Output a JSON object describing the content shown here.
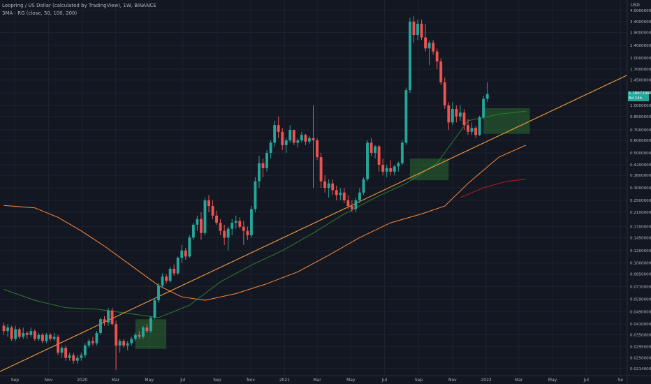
{
  "header": {
    "title": "Loopring / US Dollar (calculated by TradingView), 1W, BINANCE",
    "indicator": "3MA - RG (close, 50, 100, 200)"
  },
  "colors": {
    "background": "#131722",
    "up": "#26a69a",
    "down": "#ef5350",
    "grid": "#1f2330",
    "text": "#b2b5be",
    "ma50": "#2e7d32",
    "ma100": "#ff8a3d",
    "ma200": "#b71c1c",
    "trendline": "#f39c3d",
    "zone": "#2e7d32"
  },
  "chart_data": {
    "type": "candlestick",
    "title": "Loopring / US Dollar (calculated by TradingView), 1W, BINANCE",
    "y_scale": "log",
    "ylabel": "USD",
    "ylim": [
      0.0195,
      4.3
    ],
    "y_ticks": [
      "4.00000000",
      "3.40000000",
      "2.90000000",
      "2.40000000",
      "2.00000000",
      "1.70000000",
      "1.45000000",
      "1.20000000",
      "1.00000000",
      "0.85000000",
      "0.70000000",
      "0.60000000",
      "0.50000000",
      "0.42000000",
      "0.36000000",
      "0.30000000",
      "0.25000000",
      "0.21000000",
      "0.17000000",
      "0.14500000",
      "0.12000000",
      "0.10000000",
      "0.08500000",
      "0.07100000",
      "0.05900000",
      "0.04900000",
      "0.04100000",
      "0.03500000",
      "0.02950000",
      "0.02500000",
      "0.02140000"
    ],
    "x_ticks": [
      {
        "label": "Sep",
        "date": "2019-09-01"
      },
      {
        "label": "Nov",
        "date": "2019-11-01"
      },
      {
        "label": "2020",
        "date": "2020-01-01"
      },
      {
        "label": "Mar",
        "date": "2020-03-01"
      },
      {
        "label": "May",
        "date": "2020-05-01"
      },
      {
        "label": "Jul",
        "date": "2020-07-01"
      },
      {
        "label": "Sep",
        "date": "2020-09-01"
      },
      {
        "label": "Nov",
        "date": "2020-11-01"
      },
      {
        "label": "2021",
        "date": "2021-01-01"
      },
      {
        "label": "Mar",
        "date": "2021-03-01"
      },
      {
        "label": "May",
        "date": "2021-05-01"
      },
      {
        "label": "Jul",
        "date": "2021-07-01"
      },
      {
        "label": "Sep",
        "date": "2021-09-01"
      },
      {
        "label": "Nov",
        "date": "2021-11-01"
      },
      {
        "label": "2022",
        "date": "2022-01-01"
      },
      {
        "label": "Mar",
        "date": "2022-03-01"
      },
      {
        "label": "May",
        "date": "2022-05-01"
      },
      {
        "label": "Jul",
        "date": "2022-07-01"
      },
      {
        "label": "Se",
        "date": "2022-09-01"
      }
    ],
    "xlim": [
      "2019-08-05",
      "2022-09-12"
    ],
    "first_week": "2019-08-12",
    "candles": [
      [
        0.04,
        0.042,
        0.035,
        0.037
      ],
      [
        0.037,
        0.041,
        0.034,
        0.039
      ],
      [
        0.039,
        0.04,
        0.032,
        0.033
      ],
      [
        0.033,
        0.04,
        0.032,
        0.038
      ],
      [
        0.038,
        0.039,
        0.033,
        0.034
      ],
      [
        0.034,
        0.039,
        0.033,
        0.036
      ],
      [
        0.036,
        0.037,
        0.033,
        0.035
      ],
      [
        0.035,
        0.039,
        0.034,
        0.037
      ],
      [
        0.037,
        0.038,
        0.032,
        0.033
      ],
      [
        0.033,
        0.036,
        0.032,
        0.035
      ],
      [
        0.035,
        0.036,
        0.031,
        0.032
      ],
      [
        0.032,
        0.036,
        0.031,
        0.035
      ],
      [
        0.035,
        0.036,
        0.032,
        0.033
      ],
      [
        0.033,
        0.036,
        0.032,
        0.034
      ],
      [
        0.034,
        0.035,
        0.026,
        0.027
      ],
      [
        0.027,
        0.03,
        0.025,
        0.029
      ],
      [
        0.029,
        0.03,
        0.024,
        0.025
      ],
      [
        0.025,
        0.027,
        0.024,
        0.026
      ],
      [
        0.026,
        0.027,
        0.023,
        0.024
      ],
      [
        0.024,
        0.026,
        0.023,
        0.025
      ],
      [
        0.025,
        0.027,
        0.024,
        0.026
      ],
      [
        0.026,
        0.031,
        0.025,
        0.03
      ],
      [
        0.03,
        0.033,
        0.029,
        0.032
      ],
      [
        0.032,
        0.034,
        0.03,
        0.031
      ],
      [
        0.031,
        0.037,
        0.03,
        0.036
      ],
      [
        0.036,
        0.045,
        0.035,
        0.044
      ],
      [
        0.044,
        0.046,
        0.04,
        0.042
      ],
      [
        0.042,
        0.052,
        0.04,
        0.05
      ],
      [
        0.05,
        0.052,
        0.04,
        0.041
      ],
      [
        0.041,
        0.043,
        0.021,
        0.03
      ],
      [
        0.03,
        0.033,
        0.027,
        0.032
      ],
      [
        0.032,
        0.033,
        0.029,
        0.03
      ],
      [
        0.03,
        0.032,
        0.028,
        0.031
      ],
      [
        0.031,
        0.034,
        0.03,
        0.033
      ],
      [
        0.033,
        0.036,
        0.032,
        0.035
      ],
      [
        0.035,
        0.037,
        0.033,
        0.034
      ],
      [
        0.034,
        0.04,
        0.033,
        0.039
      ],
      [
        0.039,
        0.041,
        0.036,
        0.037
      ],
      [
        0.037,
        0.046,
        0.036,
        0.045
      ],
      [
        0.045,
        0.06,
        0.044,
        0.058
      ],
      [
        0.058,
        0.075,
        0.056,
        0.072
      ],
      [
        0.072,
        0.086,
        0.07,
        0.082
      ],
      [
        0.082,
        0.085,
        0.074,
        0.077
      ],
      [
        0.077,
        0.095,
        0.075,
        0.092
      ],
      [
        0.092,
        0.098,
        0.083,
        0.086
      ],
      [
        0.086,
        0.11,
        0.084,
        0.108
      ],
      [
        0.108,
        0.13,
        0.1,
        0.12
      ],
      [
        0.12,
        0.125,
        0.105,
        0.11
      ],
      [
        0.11,
        0.15,
        0.108,
        0.145
      ],
      [
        0.145,
        0.18,
        0.14,
        0.175
      ],
      [
        0.175,
        0.2,
        0.16,
        0.19
      ],
      [
        0.19,
        0.21,
        0.14,
        0.155
      ],
      [
        0.155,
        0.26,
        0.15,
        0.25
      ],
      [
        0.25,
        0.27,
        0.21,
        0.23
      ],
      [
        0.23,
        0.25,
        0.19,
        0.2
      ],
      [
        0.2,
        0.215,
        0.175,
        0.18
      ],
      [
        0.18,
        0.19,
        0.15,
        0.16
      ],
      [
        0.16,
        0.175,
        0.13,
        0.145
      ],
      [
        0.145,
        0.17,
        0.12,
        0.165
      ],
      [
        0.165,
        0.19,
        0.15,
        0.18
      ],
      [
        0.18,
        0.2,
        0.165,
        0.185
      ],
      [
        0.185,
        0.195,
        0.165,
        0.17
      ],
      [
        0.17,
        0.185,
        0.13,
        0.16
      ],
      [
        0.16,
        0.17,
        0.14,
        0.15
      ],
      [
        0.15,
        0.23,
        0.145,
        0.22
      ],
      [
        0.22,
        0.35,
        0.21,
        0.33
      ],
      [
        0.33,
        0.48,
        0.3,
        0.43
      ],
      [
        0.43,
        0.46,
        0.35,
        0.4
      ],
      [
        0.4,
        0.52,
        0.38,
        0.5
      ],
      [
        0.5,
        0.6,
        0.46,
        0.58
      ],
      [
        0.58,
        0.8,
        0.55,
        0.75
      ],
      [
        0.75,
        0.85,
        0.62,
        0.68
      ],
      [
        0.68,
        0.72,
        0.52,
        0.56
      ],
      [
        0.56,
        0.62,
        0.5,
        0.6
      ],
      [
        0.6,
        0.75,
        0.58,
        0.7
      ],
      [
        0.7,
        0.68,
        0.56,
        0.58
      ],
      [
        0.58,
        0.62,
        0.54,
        0.6
      ],
      [
        0.6,
        0.68,
        0.58,
        0.65
      ],
      [
        0.65,
        0.66,
        0.56,
        0.59
      ],
      [
        0.59,
        0.64,
        0.57,
        0.62
      ],
      [
        0.62,
        1.0,
        0.3,
        0.6
      ],
      [
        0.6,
        0.62,
        0.45,
        0.47
      ],
      [
        0.47,
        0.5,
        0.3,
        0.33
      ],
      [
        0.33,
        0.36,
        0.28,
        0.3
      ],
      [
        0.3,
        0.34,
        0.26,
        0.32
      ],
      [
        0.32,
        0.34,
        0.27,
        0.29
      ],
      [
        0.29,
        0.31,
        0.25,
        0.27
      ],
      [
        0.27,
        0.3,
        0.25,
        0.28
      ],
      [
        0.28,
        0.3,
        0.24,
        0.25
      ],
      [
        0.25,
        0.27,
        0.22,
        0.23
      ],
      [
        0.23,
        0.25,
        0.21,
        0.22
      ],
      [
        0.22,
        0.26,
        0.21,
        0.25
      ],
      [
        0.25,
        0.3,
        0.24,
        0.28
      ],
      [
        0.28,
        0.35,
        0.27,
        0.34
      ],
      [
        0.34,
        0.6,
        0.33,
        0.58
      ],
      [
        0.58,
        0.62,
        0.48,
        0.5
      ],
      [
        0.5,
        0.56,
        0.46,
        0.55
      ],
      [
        0.55,
        0.56,
        0.38,
        0.42
      ],
      [
        0.42,
        0.46,
        0.36,
        0.38
      ],
      [
        0.38,
        0.42,
        0.35,
        0.4
      ],
      [
        0.4,
        0.45,
        0.36,
        0.38
      ],
      [
        0.38,
        0.42,
        0.36,
        0.41
      ],
      [
        0.41,
        0.44,
        0.38,
        0.43
      ],
      [
        0.43,
        0.6,
        0.42,
        0.58
      ],
      [
        0.58,
        1.3,
        0.56,
        1.25
      ],
      [
        1.25,
        3.6,
        1.2,
        3.4
      ],
      [
        3.4,
        3.7,
        2.5,
        2.8
      ],
      [
        2.8,
        3.5,
        2.6,
        3.3
      ],
      [
        3.3,
        3.5,
        2.6,
        2.7
      ],
      [
        2.7,
        3.3,
        2.2,
        2.3
      ],
      [
        2.3,
        2.6,
        1.8,
        2.5
      ],
      [
        2.5,
        2.6,
        2.1,
        2.2
      ],
      [
        2.2,
        2.3,
        1.7,
        1.9
      ],
      [
        1.9,
        2.0,
        1.35,
        1.4
      ],
      [
        1.4,
        1.5,
        0.95,
        1.0
      ],
      [
        1.0,
        1.05,
        0.7,
        0.78
      ],
      [
        0.78,
        1.05,
        0.75,
        0.95
      ],
      [
        0.95,
        1.0,
        0.78,
        0.85
      ],
      [
        0.85,
        1.0,
        0.8,
        0.9
      ],
      [
        0.9,
        0.95,
        0.7,
        0.75
      ],
      [
        0.75,
        0.82,
        0.65,
        0.68
      ],
      [
        0.68,
        0.78,
        0.65,
        0.72
      ],
      [
        0.72,
        0.74,
        0.62,
        0.65
      ],
      [
        0.65,
        0.86,
        0.64,
        0.84
      ],
      [
        0.84,
        1.15,
        0.82,
        1.1
      ],
      [
        1.1,
        1.4,
        1.05,
        1.18
      ]
    ],
    "series": [
      {
        "name": "MA 50",
        "color": "#2e7d32",
        "points": [
          [
            "2019-08-12",
            0.068
          ],
          [
            "2019-10-07",
            0.058
          ],
          [
            "2019-12-02",
            0.052
          ],
          [
            "2020-01-27",
            0.051
          ],
          [
            "2020-03-23",
            0.048
          ],
          [
            "2020-05-18",
            0.045
          ],
          [
            "2020-07-13",
            0.054
          ],
          [
            "2020-09-07",
            0.076
          ],
          [
            "2020-11-02",
            0.097
          ],
          [
            "2020-12-28",
            0.12
          ],
          [
            "2021-02-22",
            0.155
          ],
          [
            "2021-04-19",
            0.205
          ],
          [
            "2021-06-14",
            0.26
          ],
          [
            "2021-08-09",
            0.32
          ],
          [
            "2021-10-04",
            0.43
          ],
          [
            "2021-11-29",
            0.8
          ],
          [
            "2022-01-24",
            0.88
          ],
          [
            "2022-03-14",
            0.92
          ]
        ]
      },
      {
        "name": "MA 100",
        "color": "#ff8a3d",
        "points": [
          [
            "2019-08-12",
            0.232
          ],
          [
            "2019-10-07",
            0.224
          ],
          [
            "2019-11-18",
            0.195
          ],
          [
            "2019-12-30",
            0.16
          ],
          [
            "2020-02-10",
            0.128
          ],
          [
            "2020-03-30",
            0.096
          ],
          [
            "2020-05-18",
            0.072
          ],
          [
            "2020-06-29",
            0.061
          ],
          [
            "2020-08-10",
            0.058
          ],
          [
            "2020-10-05",
            0.064
          ],
          [
            "2020-11-30",
            0.074
          ],
          [
            "2021-01-25",
            0.088
          ],
          [
            "2021-03-22",
            0.112
          ],
          [
            "2021-05-17",
            0.145
          ],
          [
            "2021-07-12",
            0.18
          ],
          [
            "2021-09-06",
            0.205
          ],
          [
            "2021-10-18",
            0.23
          ],
          [
            "2021-11-29",
            0.32
          ],
          [
            "2022-01-24",
            0.47
          ],
          [
            "2022-03-14",
            0.56
          ]
        ]
      },
      {
        "name": "MA 200",
        "color": "#b71c1c",
        "points": [
          [
            "2021-11-15",
            0.26
          ],
          [
            "2021-12-27",
            0.3
          ],
          [
            "2022-02-07",
            0.33
          ],
          [
            "2022-03-14",
            0.34
          ]
        ]
      }
    ],
    "trendline": {
      "color": "#f39c3d",
      "from": [
        "2019-08-05",
        0.0205
      ],
      "to": [
        "2022-09-12",
        1.55
      ]
    },
    "zones": [
      {
        "from": [
          "2020-04-06",
          0.0285
        ],
        "to": [
          "2020-06-01",
          0.044
        ]
      },
      {
        "from": [
          "2021-08-16",
          0.335
        ],
        "to": [
          "2021-10-25",
          0.46
        ]
      },
      {
        "from": [
          "2021-12-27",
          0.66
        ],
        "to": [
          "2022-03-21",
          0.96
        ]
      }
    ],
    "last_price": {
      "value": "1.18072000",
      "volume": "6d 14h"
    },
    "grid": true,
    "legend": "top-left"
  }
}
